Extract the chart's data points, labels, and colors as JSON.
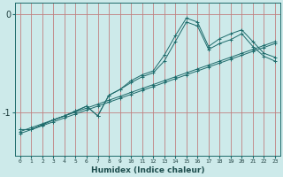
{
  "x": [
    0,
    1,
    2,
    3,
    4,
    5,
    6,
    7,
    8,
    9,
    10,
    11,
    12,
    13,
    14,
    15,
    16,
    17,
    18,
    19,
    20,
    21,
    22,
    23
  ],
  "line1": [
    -1.18,
    -1.18,
    -1.13,
    -1.08,
    -1.04,
    -0.99,
    -0.94,
    -1.04,
    -0.83,
    -0.77,
    -0.68,
    -0.62,
    -0.58,
    -0.42,
    -0.22,
    -0.04,
    -0.08,
    -0.33,
    -0.25,
    -0.2,
    -0.16,
    -0.28,
    -0.4,
    -0.44
  ],
  "line2": [
    -1.18,
    -1.18,
    -1.13,
    -1.08,
    -1.04,
    -0.99,
    -0.94,
    -1.04,
    -0.83,
    -0.77,
    -0.7,
    -0.64,
    -0.6,
    -0.48,
    -0.28,
    -0.08,
    -0.12,
    -0.36,
    -0.3,
    -0.26,
    -0.2,
    -0.33,
    -0.43,
    -0.48
  ],
  "line3": [
    -1.2,
    -1.16,
    -1.12,
    -1.08,
    -1.04,
    -1.0,
    -0.96,
    -0.92,
    -0.88,
    -0.84,
    -0.8,
    -0.76,
    -0.72,
    -0.68,
    -0.64,
    -0.6,
    -0.56,
    -0.52,
    -0.48,
    -0.44,
    -0.4,
    -0.36,
    -0.32,
    -0.28
  ],
  "line4": [
    -1.22,
    -1.18,
    -1.14,
    -1.1,
    -1.06,
    -1.02,
    -0.98,
    -0.94,
    -0.9,
    -0.86,
    -0.82,
    -0.78,
    -0.74,
    -0.7,
    -0.66,
    -0.62,
    -0.58,
    -0.54,
    -0.5,
    -0.46,
    -0.42,
    -0.38,
    -0.34,
    -0.3
  ],
  "bg_color": "#cdeaea",
  "line_color": "#1e6b6b",
  "grid_color_x": "#c08080",
  "grid_color_y": "#c08080",
  "xlabel": "Humidex (Indice chaleur)",
  "ylim": [
    -1.45,
    0.12
  ],
  "xlim": [
    -0.5,
    23.5
  ],
  "yticks": [
    0,
    -1
  ],
  "ytick_labels": [
    "0",
    "-1"
  ]
}
